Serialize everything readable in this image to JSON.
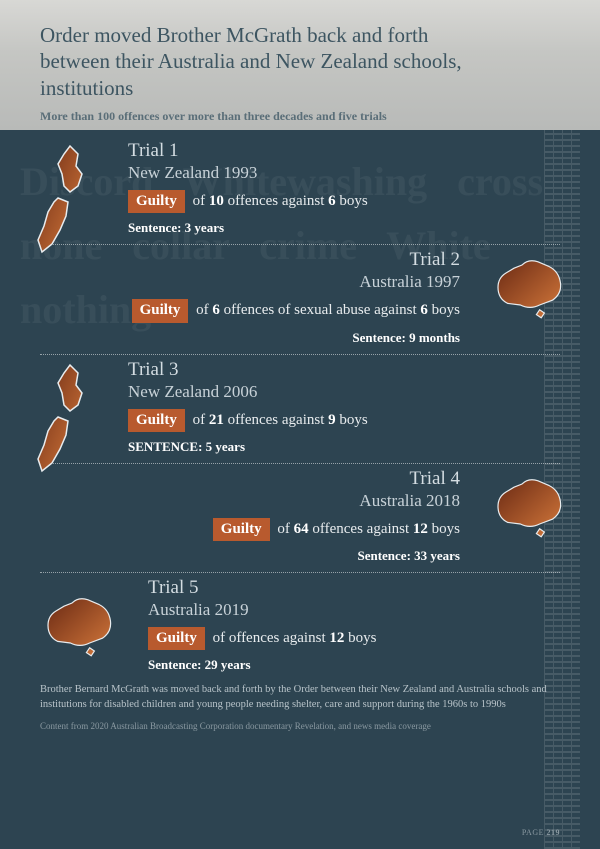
{
  "header": {
    "title": "Order moved Brother McGrath back and forth between their Australia and New Zealand schools, institutions",
    "subtitle": "More than 100 offences over more than three decades and five trials"
  },
  "colors": {
    "background": "#2d4451",
    "accent": "#b85a2e",
    "map_fill_start": "#8b3a1e",
    "map_fill_end": "#d67a3c",
    "map_stroke": "#e8ecee",
    "header_grad_top": "#d8d8d5",
    "header_grad_bottom": "#b8bab8"
  },
  "trials": [
    {
      "name": "Trial 1",
      "location": "New Zealand 1993",
      "verdict_pre": "of ",
      "n1": "10",
      "mid": " offences against ",
      "n2": "6",
      "post": " boys",
      "sentence": "Sentence: 3 years",
      "side": "left",
      "country": "nz"
    },
    {
      "name": "Trial 2",
      "location": "Australia 1997",
      "verdict_pre": "of ",
      "n1": "6",
      "mid": " offences of sexual abuse against ",
      "n2": "6",
      "post": " boys",
      "sentence": "Sentence: 9 months",
      "side": "right",
      "country": "au"
    },
    {
      "name": "Trial 3",
      "location": "New Zealand 2006",
      "verdict_pre": "of ",
      "n1": "21",
      "mid": " offences against ",
      "n2": "9",
      "post": " boys",
      "sentence": "SENTENCE: 5 years",
      "side": "left",
      "country": "nz"
    },
    {
      "name": "Trial 4",
      "location": "Australia 2018",
      "verdict_pre": "of ",
      "n1": "64",
      "mid": " offences against ",
      "n2": "12",
      "post": " boys",
      "sentence": "Sentence: 33 years",
      "side": "right",
      "country": "au"
    },
    {
      "name": "Trial 5",
      "location": "Australia 2019",
      "verdict_pre": "of offences against ",
      "n1": "",
      "mid": "",
      "n2": "12",
      "post": " boys",
      "sentence": "Sentence: 29 years",
      "side": "lastleft",
      "country": "au"
    }
  ],
  "guilty_label": "Guilty",
  "footnote": "Brother Bernard McGrath was moved back and forth by the Order between their New Zealand and Australia schools and institutions for disabled children and young people needing shelter, care and support during the 1960s to 1990s",
  "source": "Content from 2020 Australian Broadcasting Corporation documentary Revelation, and news media coverage",
  "page_label": "PAGE ",
  "page_number": "219"
}
